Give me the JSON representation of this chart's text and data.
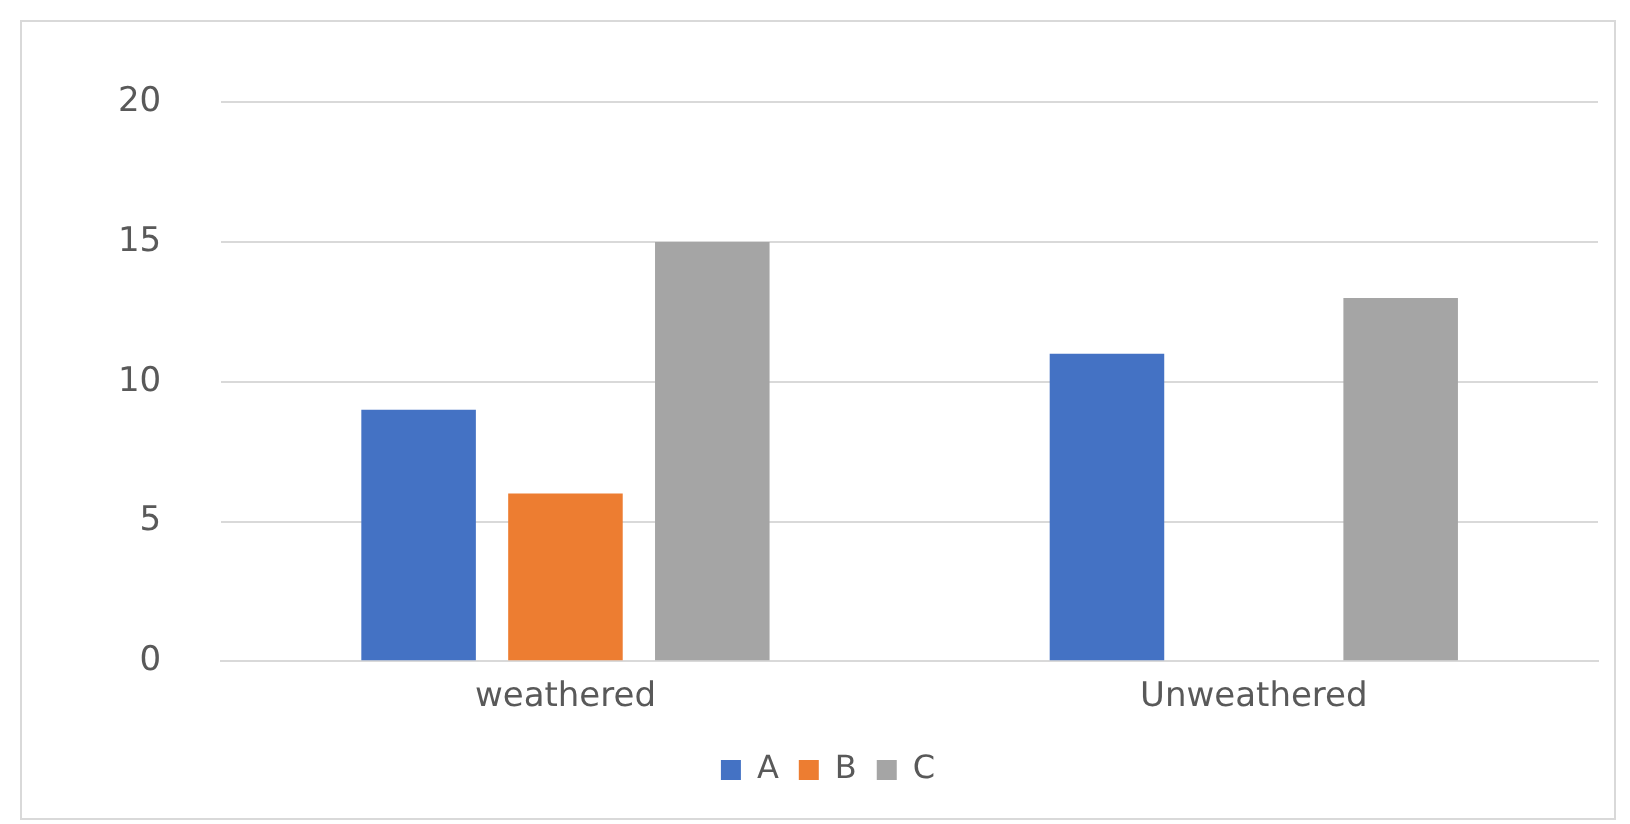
{
  "chart_data": {
    "type": "bar",
    "categories": [
      "weathered",
      "Unweathered"
    ],
    "series": [
      {
        "name": "A",
        "color": "#4472c4",
        "values": [
          9,
          11
        ]
      },
      {
        "name": "B",
        "color": "#ed7d31",
        "values": [
          6,
          0
        ]
      },
      {
        "name": "C",
        "color": "#a5a5a5",
        "values": [
          15,
          13
        ]
      }
    ],
    "ylim": [
      0,
      20
    ],
    "yticks": [
      0,
      5,
      10,
      15,
      20
    ],
    "grid": "y",
    "legend": "bottom"
  }
}
